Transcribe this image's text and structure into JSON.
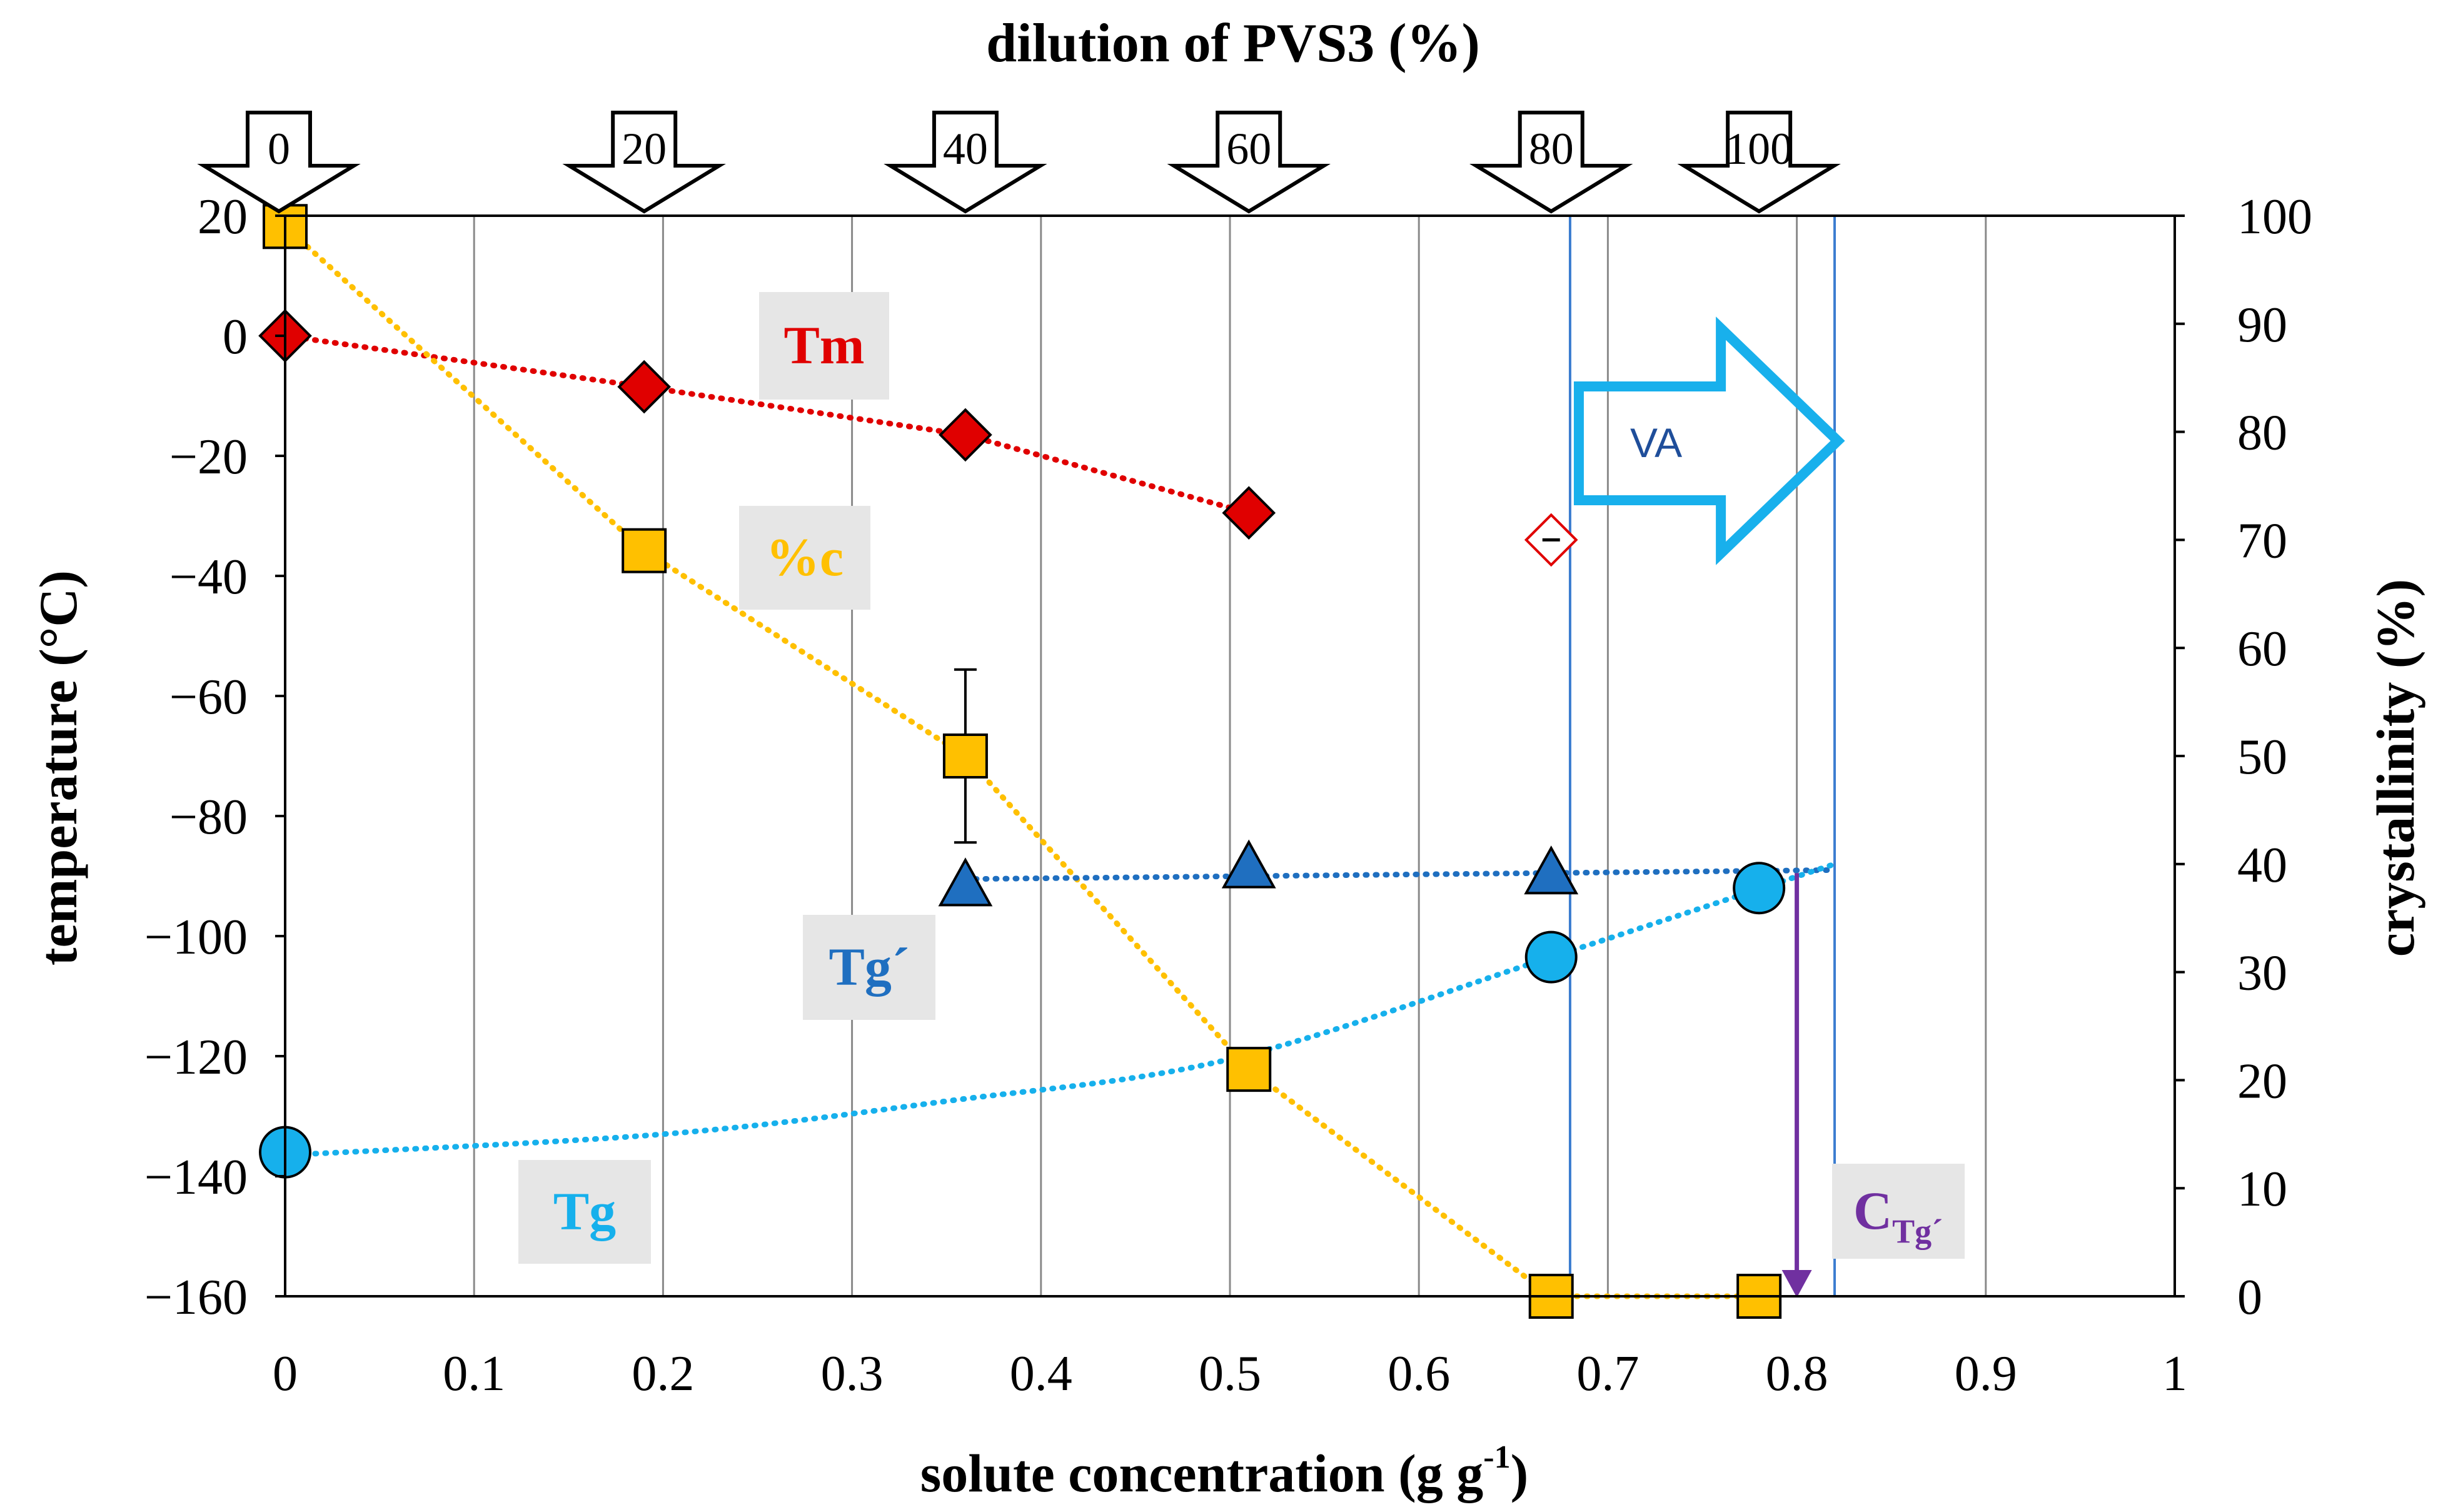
{
  "chart_data": {
    "type": "scatter",
    "title": "dilution of PVS3 (%)",
    "xlabel": "solute concentration (g g",
    "xlabel_superscript": "-1",
    "xlabel_suffix": ")",
    "ylabel_left": "temperature (°C)",
    "ylabel_right": "crystallinity (%)",
    "xlim": [
      0,
      1
    ],
    "ylim_left": [
      -160,
      20
    ],
    "ylim_right": [
      0,
      100
    ],
    "x_ticks": [
      "0",
      "0.1",
      "0.2",
      "0.3",
      "0.4",
      "0.5",
      "0.6",
      "0.7",
      "0.8",
      "0.9",
      "1"
    ],
    "y_left_ticks": [
      "20",
      "0",
      "−20",
      "−40",
      "−60",
      "−80",
      "−100",
      "−120",
      "−140",
      "−160"
    ],
    "y_right_ticks": [
      "100",
      "90",
      "80",
      "70",
      "60",
      "50",
      "40",
      "30",
      "20",
      "10",
      "0"
    ],
    "grid": "vertical",
    "top_markers": [
      {
        "label": "0",
        "x": 0
      },
      {
        "label": "20",
        "x": 0.19
      },
      {
        "label": "40",
        "x": 0.36
      },
      {
        "label": "60",
        "x": 0.51
      },
      {
        "label": "80",
        "x": 0.67
      },
      {
        "label": "100",
        "x": 0.78
      }
    ],
    "series": [
      {
        "name": "Tm",
        "axis": "left",
        "marker": "diamond",
        "color": "#e00000",
        "points": [
          {
            "x": 0,
            "y": 0
          },
          {
            "x": 0.19,
            "y": -8.5
          },
          {
            "x": 0.36,
            "y": -16.5
          },
          {
            "x": 0.51,
            "y": -29.5
          }
        ],
        "extra_points": [
          {
            "x": 0.67,
            "y": -34,
            "style": "open-with-bar"
          }
        ]
      },
      {
        "name": "%c",
        "axis": "right",
        "marker": "square",
        "color": "#ffc000",
        "points": [
          {
            "x": 0,
            "y": 99
          },
          {
            "x": 0.19,
            "y": 69
          },
          {
            "x": 0.36,
            "y": 50,
            "err": 8
          },
          {
            "x": 0.51,
            "y": 21
          },
          {
            "x": 0.67,
            "y": 0
          },
          {
            "x": 0.78,
            "y": 0
          }
        ]
      },
      {
        "name": "Tg´",
        "axis": "left",
        "marker": "triangle",
        "color": "#1f6fc0",
        "points": [
          {
            "x": 0.36,
            "y": -91.5
          },
          {
            "x": 0.51,
            "y": -88.5
          },
          {
            "x": 0.67,
            "y": -89.5
          }
        ],
        "fit_line": [
          {
            "x": 0.36,
            "y": -90.5
          },
          {
            "x": 0.82,
            "y": -89
          }
        ]
      },
      {
        "name": "Tg",
        "axis": "left",
        "marker": "circle",
        "color": "#16b0ec",
        "points": [
          {
            "x": 0,
            "y": -136
          },
          {
            "x": 0.67,
            "y": -103.5
          },
          {
            "x": 0.78,
            "y": -92
          }
        ],
        "fit_line": [
          {
            "x": 0,
            "y": -136.5
          },
          {
            "x": 0.2,
            "y": -133
          },
          {
            "x": 0.35,
            "y": -127.5
          },
          {
            "x": 0.5,
            "y": -120.5
          },
          {
            "x": 0.67,
            "y": -103.5
          },
          {
            "x": 0.82,
            "y": -88
          }
        ]
      }
    ],
    "series_labels": [
      {
        "text": "Tm",
        "color": "#e00000"
      },
      {
        "text": "%c",
        "color": "#ffc000"
      },
      {
        "text": "Tg´",
        "color": "#1f6fc0"
      },
      {
        "text": "Tg",
        "color": "#16b0ec"
      }
    ],
    "annotations": {
      "va_region": {
        "x_from": 0.68,
        "x_to": 0.82,
        "label": "VA",
        "color": "#18b0ec"
      },
      "ctg": {
        "x": 0.8,
        "y_from": -89.5,
        "y_to": -160,
        "label": "C",
        "label_sub": "Tg´",
        "color": "#7030a0"
      }
    }
  }
}
